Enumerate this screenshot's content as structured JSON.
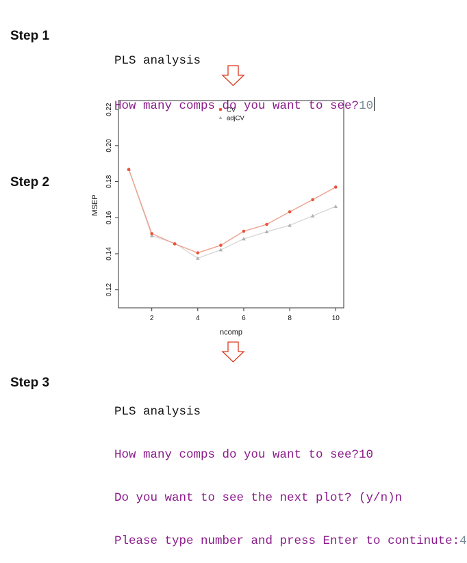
{
  "steps": {
    "step1": "Step 1",
    "step2": "Step 2",
    "step3": "Step 3"
  },
  "console1": {
    "title": "PLS analysis",
    "prompt": "How many comps do you want to see?",
    "input": "10"
  },
  "console3": {
    "title": "PLS analysis",
    "line1": "How many comps do you want to see?10",
    "line2": "Do you want to see the next plot? (y/n)n",
    "line3_prompt": "Please type number and press Enter to continute:",
    "line3_input": "4"
  },
  "colors": {
    "cv": "#e8543a",
    "adjcv": "#b0b0b0",
    "cv_line": "#f0a08f",
    "adjcv_line": "#d8d8d8",
    "arrow": "#d9391f",
    "prompt": "#8b1a8b"
  },
  "chart_data": {
    "type": "line",
    "title": "",
    "xlabel": "ncomp",
    "ylabel": "MSEP",
    "xlim": [
      0.55,
      10.35
    ],
    "ylim": [
      0.11,
      0.225
    ],
    "xticks": [
      2,
      4,
      6,
      8,
      10
    ],
    "yticks": [
      0.12,
      0.14,
      0.16,
      0.18,
      0.2,
      0.22
    ],
    "ytick_labels": [
      "0.12",
      "0.14",
      "0.16",
      "0.18",
      "0.20",
      "0.22"
    ],
    "grid": false,
    "legend": "top-center",
    "x": [
      1,
      2,
      3,
      4,
      5,
      6,
      7,
      8,
      9,
      10
    ],
    "series": [
      {
        "name": "CV",
        "marker": "circle",
        "values": [
          0.1868,
          0.1512,
          0.1455,
          0.1405,
          0.1447,
          0.1525,
          0.1563,
          0.1633,
          0.17,
          0.177
        ]
      },
      {
        "name": "adjCV",
        "marker": "triangle",
        "values": [
          0.1868,
          0.15,
          0.1458,
          0.1375,
          0.1422,
          0.1483,
          0.1522,
          0.1558,
          0.161,
          0.1663
        ]
      }
    ]
  }
}
